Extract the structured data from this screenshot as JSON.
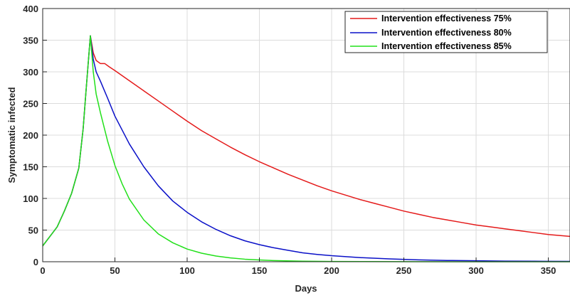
{
  "chart_data": {
    "type": "line",
    "title": "",
    "xlabel": "Days",
    "ylabel": "Symptomatic infected",
    "xlim": [
      0,
      365
    ],
    "ylim": [
      0,
      400
    ],
    "xticks": [
      0,
      50,
      100,
      150,
      200,
      250,
      300,
      350
    ],
    "yticks": [
      0,
      50,
      100,
      150,
      200,
      250,
      300,
      350,
      400
    ],
    "grid": true,
    "legend_location": "top-right",
    "series": [
      {
        "name": "Intervention effectiveness 75%",
        "color": "#e41a1a",
        "points": [
          [
            0,
            25
          ],
          [
            5,
            40
          ],
          [
            10,
            55
          ],
          [
            15,
            80
          ],
          [
            20,
            108
          ],
          [
            25,
            148
          ],
          [
            28,
            210
          ],
          [
            30,
            270
          ],
          [
            33,
            357
          ],
          [
            35,
            330
          ],
          [
            37,
            318
          ],
          [
            40,
            313
          ],
          [
            43,
            313
          ],
          [
            46,
            308
          ],
          [
            50,
            302
          ],
          [
            60,
            286
          ],
          [
            70,
            270
          ],
          [
            80,
            254
          ],
          [
            90,
            238
          ],
          [
            100,
            222
          ],
          [
            110,
            207
          ],
          [
            120,
            194
          ],
          [
            130,
            181
          ],
          [
            140,
            169
          ],
          [
            150,
            158
          ],
          [
            160,
            148
          ],
          [
            170,
            138
          ],
          [
            180,
            129
          ],
          [
            190,
            120
          ],
          [
            200,
            112
          ],
          [
            210,
            105
          ],
          [
            220,
            98
          ],
          [
            230,
            92
          ],
          [
            240,
            86
          ],
          [
            250,
            80
          ],
          [
            260,
            75
          ],
          [
            270,
            70
          ],
          [
            280,
            66
          ],
          [
            290,
            62
          ],
          [
            300,
            58
          ],
          [
            310,
            55
          ],
          [
            320,
            52
          ],
          [
            330,
            49
          ],
          [
            340,
            46
          ],
          [
            350,
            43
          ],
          [
            360,
            41
          ],
          [
            365,
            40
          ]
        ]
      },
      {
        "name": "Intervention effectiveness 80%",
        "color": "#0a10c8",
        "points": [
          [
            0,
            25
          ],
          [
            5,
            40
          ],
          [
            10,
            55
          ],
          [
            15,
            80
          ],
          [
            20,
            108
          ],
          [
            25,
            148
          ],
          [
            28,
            210
          ],
          [
            30,
            270
          ],
          [
            33,
            357
          ],
          [
            35,
            320
          ],
          [
            37,
            300
          ],
          [
            40,
            285
          ],
          [
            45,
            258
          ],
          [
            50,
            230
          ],
          [
            60,
            186
          ],
          [
            70,
            150
          ],
          [
            80,
            120
          ],
          [
            90,
            96
          ],
          [
            100,
            78
          ],
          [
            110,
            63
          ],
          [
            120,
            51
          ],
          [
            130,
            41
          ],
          [
            140,
            33
          ],
          [
            150,
            27
          ],
          [
            160,
            22
          ],
          [
            170,
            18
          ],
          [
            180,
            14
          ],
          [
            190,
            11.5
          ],
          [
            200,
            9.5
          ],
          [
            220,
            6.5
          ],
          [
            240,
            4.5
          ],
          [
            260,
            3
          ],
          [
            280,
            2
          ],
          [
            300,
            1.5
          ],
          [
            320,
            1
          ],
          [
            340,
            0.8
          ],
          [
            365,
            0.5
          ]
        ]
      },
      {
        "name": "Intervention effectiveness 85%",
        "color": "#22e01a",
        "points": [
          [
            0,
            25
          ],
          [
            5,
            40
          ],
          [
            10,
            55
          ],
          [
            15,
            80
          ],
          [
            20,
            108
          ],
          [
            25,
            148
          ],
          [
            28,
            210
          ],
          [
            30,
            270
          ],
          [
            33,
            357
          ],
          [
            35,
            300
          ],
          [
            37,
            265
          ],
          [
            40,
            235
          ],
          [
            45,
            190
          ],
          [
            50,
            152
          ],
          [
            55,
            123
          ],
          [
            60,
            99
          ],
          [
            70,
            66
          ],
          [
            80,
            44
          ],
          [
            90,
            30
          ],
          [
            100,
            20
          ],
          [
            110,
            13.5
          ],
          [
            120,
            9
          ],
          [
            130,
            6
          ],
          [
            140,
            4
          ],
          [
            150,
            2.8
          ],
          [
            160,
            1.8
          ],
          [
            180,
            0.8
          ],
          [
            200,
            0.4
          ],
          [
            250,
            0.1
          ],
          [
            300,
            0.05
          ],
          [
            365,
            0
          ]
        ]
      }
    ]
  }
}
